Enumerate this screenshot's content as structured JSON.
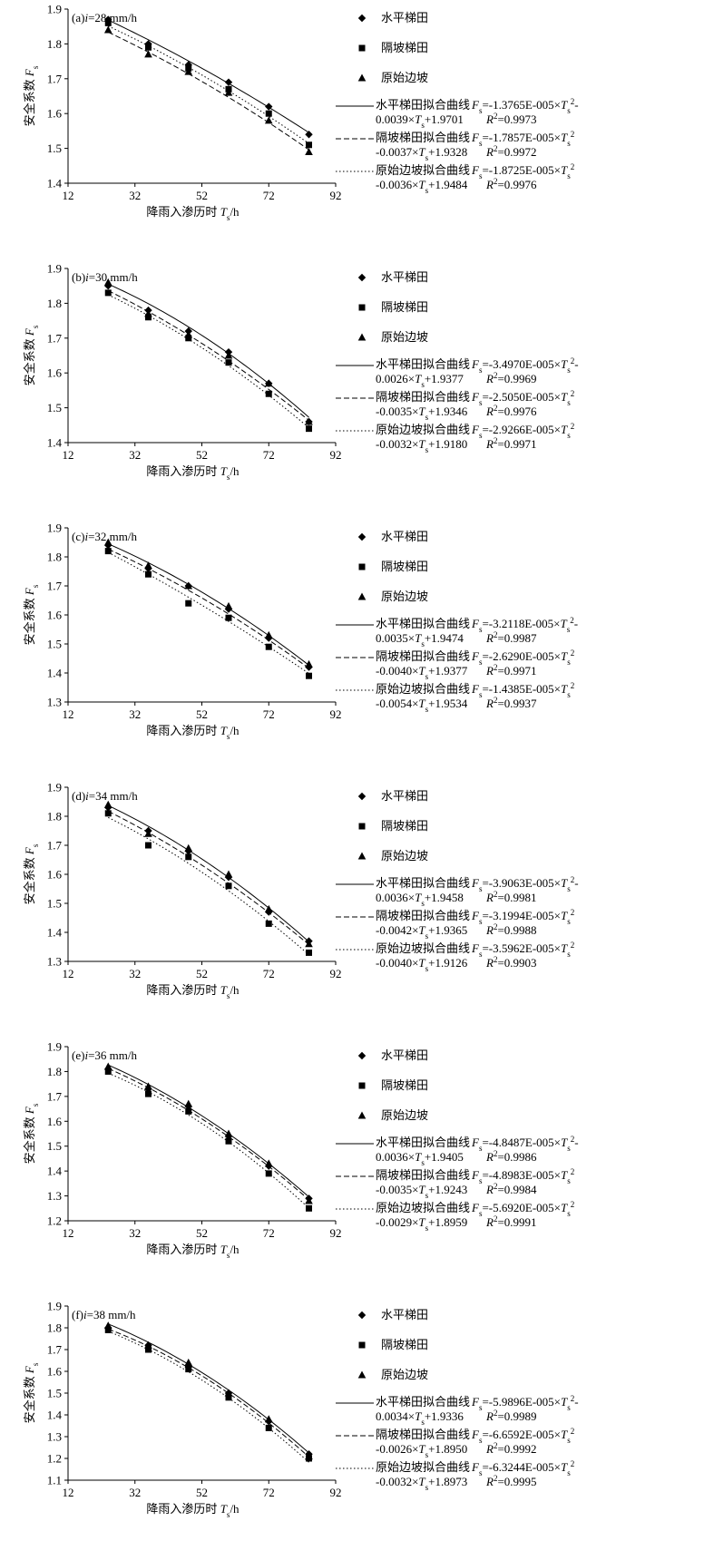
{
  "legend_labels": {
    "s1": "水平梯田",
    "s2": "隔坡梯田",
    "s3": "原始边坡"
  },
  "fit_labels": {
    "s1": "水平梯田拟合曲线",
    "s2": "隔坡梯田拟合曲线",
    "s3": "原始边坡拟合曲线"
  },
  "chart_data": [
    {
      "type": "scatter",
      "panel_label": "(a)",
      "intensity": "i=28 mm/h",
      "xlabel": "降雨入渗历时 Ts/h",
      "ylabel": "安全系数 Fs",
      "xlim": [
        12,
        92
      ],
      "xticks": [
        "12",
        "32",
        "52",
        "72",
        "92"
      ],
      "ylim": [
        1.4,
        1.9
      ],
      "yticks": [
        "1.4",
        "1.5",
        "1.6",
        "1.7",
        "1.8",
        "1.9"
      ],
      "x": [
        24,
        36,
        48,
        60,
        72,
        84
      ],
      "series": [
        {
          "name": "水平梯田",
          "marker": "diamond",
          "values": [
            1.87,
            1.8,
            1.74,
            1.69,
            1.62,
            1.54
          ]
        },
        {
          "name": "隔坡梯田",
          "marker": "square",
          "values": [
            1.86,
            1.79,
            1.73,
            1.67,
            1.6,
            1.51
          ]
        },
        {
          "name": "原始边坡",
          "marker": "triangle",
          "values": [
            1.84,
            1.77,
            1.72,
            1.66,
            1.58,
            1.49
          ]
        }
      ],
      "fits": [
        {
          "style": "solid",
          "a": -1.3765e-05,
          "b": -0.0039,
          "c": 1.9701,
          "eq1": "Fs=-1.3765E-005×Ts²-",
          "eq2": "0.0039×Ts+1.9701",
          "r2": "R²=0.9973"
        },
        {
          "style": "dashed",
          "a": -1.7857e-05,
          "b": -0.0037,
          "c": 1.9328,
          "eq1": "Fs=-1.7857E-005×Ts²",
          "eq2": "-0.0037×Ts+1.9328",
          "r2": "R²=0.9972"
        },
        {
          "style": "dotted",
          "a": -1.8725e-05,
          "b": -0.0036,
          "c": 1.9484,
          "eq1": "Fs=-1.8725E-005×Ts²",
          "eq2": "-0.0036×Ts+1.9484",
          "r2": "R²=0.9976"
        }
      ]
    },
    {
      "type": "scatter",
      "panel_label": "(b)",
      "intensity": "i=30 mm/h",
      "xlabel": "降雨入渗历时 Ts/h",
      "ylabel": "安全系数 Fs",
      "xlim": [
        12,
        92
      ],
      "xticks": [
        "12",
        "32",
        "52",
        "72",
        "92"
      ],
      "ylim": [
        1.4,
        1.9
      ],
      "yticks": [
        "1.4",
        "1.5",
        "1.6",
        "1.7",
        "1.8",
        "1.9"
      ],
      "x": [
        24,
        36,
        48,
        60,
        72,
        84
      ],
      "series": [
        {
          "name": "水平梯田",
          "marker": "diamond",
          "values": [
            1.85,
            1.78,
            1.72,
            1.66,
            1.57,
            1.46
          ]
        },
        {
          "name": "隔坡梯田",
          "marker": "square",
          "values": [
            1.83,
            1.76,
            1.7,
            1.63,
            1.54,
            1.44
          ]
        },
        {
          "name": "原始边坡",
          "marker": "triangle",
          "values": [
            1.86,
            1.77,
            1.71,
            1.65,
            1.57,
            1.46
          ]
        }
      ],
      "fits": [
        {
          "style": "solid",
          "a": -3.497e-05,
          "b": -0.0026,
          "c": 1.9377,
          "eq1": "Fs=-3.4970E-005×Ts²-",
          "eq2": "0.0026×Ts+1.9377",
          "r2": "R²=0.9969"
        },
        {
          "style": "dashed",
          "a": -2.505e-05,
          "b": -0.0035,
          "c": 1.9346,
          "eq1": "Fs=-2.5050E-005×Ts²",
          "eq2": "-0.0035×Ts+1.9346",
          "r2": "R²=0.9976"
        },
        {
          "style": "dotted",
          "a": -2.9266e-05,
          "b": -0.0032,
          "c": 1.918,
          "eq1": "Fs=-2.9266E-005×Ts²",
          "eq2": "-0.0032×Ts+1.9180",
          "r2": "R²=0.9971"
        }
      ]
    },
    {
      "type": "scatter",
      "panel_label": "(c)",
      "intensity": "i=32 mm/h",
      "xlabel": "降雨入渗历时 Ts/h",
      "ylabel": "安全系数 Fs",
      "xlim": [
        12,
        92
      ],
      "xticks": [
        "12",
        "32",
        "52",
        "72",
        "92"
      ],
      "ylim": [
        1.3,
        1.9
      ],
      "yticks": [
        "1.3",
        "1.4",
        "1.5",
        "1.6",
        "1.7",
        "1.8",
        "1.9"
      ],
      "x": [
        24,
        36,
        48,
        60,
        72,
        84
      ],
      "series": [
        {
          "name": "水平梯田",
          "marker": "diamond",
          "values": [
            1.84,
            1.76,
            1.7,
            1.62,
            1.52,
            1.42
          ]
        },
        {
          "name": "隔坡梯田",
          "marker": "square",
          "values": [
            1.82,
            1.74,
            1.64,
            1.59,
            1.49,
            1.39
          ]
        },
        {
          "name": "原始边坡",
          "marker": "triangle",
          "values": [
            1.85,
            1.77,
            1.7,
            1.63,
            1.53,
            1.43
          ]
        }
      ],
      "fits": [
        {
          "style": "solid",
          "a": -3.2118e-05,
          "b": -0.0035,
          "c": 1.9474,
          "eq1": "Fs=-3.2118E-005×Ts²-",
          "eq2": "0.0035×Ts+1.9474",
          "r2": "R²=0.9987"
        },
        {
          "style": "dashed",
          "a": -2.629e-05,
          "b": -0.004,
          "c": 1.9377,
          "eq1": "Fs=-2.6290E-005×Ts²",
          "eq2": "-0.0040×Ts+1.9377",
          "r2": "R²=0.9971"
        },
        {
          "style": "dotted",
          "a": -1.4385e-05,
          "b": -0.0054,
          "c": 1.9534,
          "eq1": "Fs=-1.4385E-005×Ts²",
          "eq2": "-0.0054×Ts+1.9534",
          "r2": "R²=0.9937"
        }
      ]
    },
    {
      "type": "scatter",
      "panel_label": "(d)",
      "intensity": "i=34 mm/h",
      "xlabel": "降雨入渗历时 Ts/h",
      "ylabel": "安全系数 Fs",
      "xlim": [
        12,
        92
      ],
      "xticks": [
        "12",
        "32",
        "52",
        "72",
        "92"
      ],
      "ylim": [
        1.3,
        1.9
      ],
      "yticks": [
        "1.3",
        "1.4",
        "1.5",
        "1.6",
        "1.7",
        "1.8",
        "1.9"
      ],
      "x": [
        24,
        36,
        48,
        60,
        72,
        84
      ],
      "series": [
        {
          "name": "水平梯田",
          "marker": "diamond",
          "values": [
            1.83,
            1.75,
            1.68,
            1.59,
            1.47,
            1.37
          ]
        },
        {
          "name": "隔坡梯田",
          "marker": "square",
          "values": [
            1.81,
            1.7,
            1.66,
            1.56,
            1.43,
            1.33
          ]
        },
        {
          "name": "原始边坡",
          "marker": "triangle",
          "values": [
            1.84,
            1.74,
            1.69,
            1.6,
            1.48,
            1.36
          ]
        }
      ],
      "fits": [
        {
          "style": "solid",
          "a": -3.9063e-05,
          "b": -0.0036,
          "c": 1.9458,
          "eq1": "Fs=-3.9063E-005×Ts²-",
          "eq2": "0.0036×Ts+1.9458",
          "r2": "R²=0.9981"
        },
        {
          "style": "dashed",
          "a": -3.1994e-05,
          "b": -0.0042,
          "c": 1.9365,
          "eq1": "Fs=-3.1994E-005×Ts²",
          "eq2": "-0.0042×Ts+1.9365",
          "r2": "R²=0.9988"
        },
        {
          "style": "dotted",
          "a": -3.5962e-05,
          "b": -0.004,
          "c": 1.9126,
          "eq1": "Fs=-3.5962E-005×Ts²",
          "eq2": "-0.0040×Ts+1.9126",
          "r2": "R²=0.9903"
        }
      ]
    },
    {
      "type": "scatter",
      "panel_label": "(e)",
      "intensity": "i=36 mm/h",
      "xlabel": "降雨入渗历时 Ts/h",
      "ylabel": "安全系数 Fs",
      "xlim": [
        12,
        92
      ],
      "xticks": [
        "12",
        "32",
        "52",
        "72",
        "92"
      ],
      "ylim": [
        1.2,
        1.9
      ],
      "yticks": [
        "1.2",
        "1.3",
        "1.4",
        "1.5",
        "1.6",
        "1.7",
        "1.8",
        "1.9"
      ],
      "x": [
        24,
        36,
        48,
        60,
        72,
        84
      ],
      "series": [
        {
          "name": "水平梯田",
          "marker": "diamond",
          "values": [
            1.81,
            1.73,
            1.66,
            1.54,
            1.42,
            1.29
          ]
        },
        {
          "name": "隔坡梯田",
          "marker": "square",
          "values": [
            1.8,
            1.71,
            1.64,
            1.52,
            1.39,
            1.25
          ]
        },
        {
          "name": "原始边坡",
          "marker": "triangle",
          "values": [
            1.82,
            1.74,
            1.67,
            1.55,
            1.43,
            1.28
          ]
        }
      ],
      "fits": [
        {
          "style": "solid",
          "a": -4.8487e-05,
          "b": -0.0036,
          "c": 1.9405,
          "eq1": "Fs=-4.8487E-005×Ts²-",
          "eq2": "0.0036×Ts+1.9405",
          "r2": "R²=0.9986"
        },
        {
          "style": "dashed",
          "a": -4.8983e-05,
          "b": -0.0035,
          "c": 1.9243,
          "eq1": "Fs=-4.8983E-005×Ts²",
          "eq2": "-0.0035×Ts+1.9243",
          "r2": "R²=0.9984"
        },
        {
          "style": "dotted",
          "a": -5.692e-05,
          "b": -0.0029,
          "c": 1.8959,
          "eq1": "Fs=-5.6920E-005×Ts²",
          "eq2": "-0.0029×Ts+1.8959",
          "r2": "R²=0.9991"
        }
      ]
    },
    {
      "type": "scatter",
      "panel_label": "(f)",
      "intensity": "i=38 mm/h",
      "xlabel": "降雨入渗历时 Ts/h",
      "ylabel": "安全系数 Fs",
      "xlim": [
        12,
        92
      ],
      "xticks": [
        "12",
        "32",
        "52",
        "72",
        "92"
      ],
      "ylim": [
        1.1,
        1.9
      ],
      "yticks": [
        "1.1",
        "1.2",
        "1.3",
        "1.4",
        "1.5",
        "1.6",
        "1.7",
        "1.8",
        "1.9"
      ],
      "x": [
        24,
        36,
        48,
        60,
        72,
        84
      ],
      "series": [
        {
          "name": "水平梯田",
          "marker": "diamond",
          "values": [
            1.8,
            1.72,
            1.62,
            1.5,
            1.37,
            1.22
          ]
        },
        {
          "name": "隔坡梯田",
          "marker": "square",
          "values": [
            1.79,
            1.7,
            1.61,
            1.48,
            1.34,
            1.2
          ]
        },
        {
          "name": "原始边坡",
          "marker": "triangle",
          "values": [
            1.81,
            1.72,
            1.64,
            1.5,
            1.38,
            1.21
          ]
        }
      ],
      "fits": [
        {
          "style": "solid",
          "a": -5.9896e-05,
          "b": -0.0034,
          "c": 1.9336,
          "eq1": "Fs=-5.9896E-005×Ts²-",
          "eq2": "0.0034×Ts+1.9336",
          "r2": "R²=0.9989"
        },
        {
          "style": "dashed",
          "a": -6.6592e-05,
          "b": -0.0026,
          "c": 1.895,
          "eq1": "Fs=-6.6592E-005×Ts²",
          "eq2": "-0.0026×Ts+1.8950",
          "r2": "R²=0.9992"
        },
        {
          "style": "dotted",
          "a": -6.3244e-05,
          "b": -0.0032,
          "c": 1.8973,
          "eq1": "Fs=-6.3244E-005×Ts²",
          "eq2": "-0.0032×Ts+1.8973",
          "r2": "R²=0.9995"
        }
      ]
    }
  ]
}
